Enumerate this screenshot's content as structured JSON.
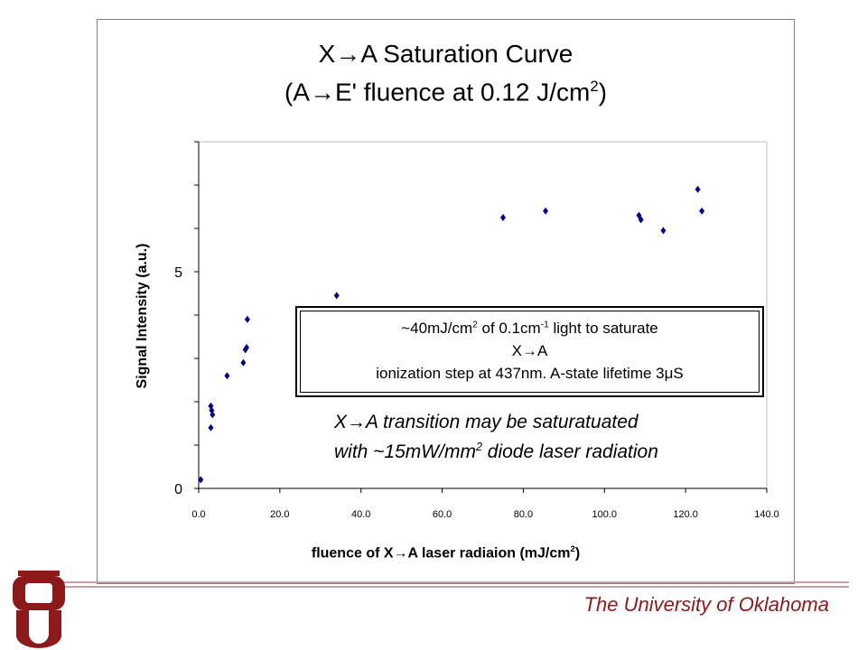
{
  "chart_data": {
    "type": "scatter",
    "title_line1": "X→A Saturation Curve",
    "title_line2_pre": "(A→E' fluence at 0.12 J/cm",
    "title_line2_sup": "2",
    "title_line2_post": ")",
    "xlabel_pre": "fluence of X→A laser radiaion (mJ/cm",
    "xlabel_sup": "2",
    "xlabel_post": ")",
    "ylabel": "Signal Intensity (a.u.)",
    "xlim": [
      0,
      140
    ],
    "ylim": [
      0,
      8
    ],
    "x_ticks": [
      "0.0",
      "20.0",
      "40.0",
      "60.0",
      "80.0",
      "100.0",
      "120.0",
      "140.0"
    ],
    "y_tick_labels": [
      "0",
      "5"
    ],
    "marker_color": "#00008b",
    "points": [
      {
        "x": 0.5,
        "y": 0.2
      },
      {
        "x": 3.0,
        "y": 1.9
      },
      {
        "x": 3.2,
        "y": 1.8
      },
      {
        "x": 3.4,
        "y": 1.7
      },
      {
        "x": 3.0,
        "y": 1.4
      },
      {
        "x": 7.0,
        "y": 2.6
      },
      {
        "x": 11.0,
        "y": 2.9
      },
      {
        "x": 11.5,
        "y": 3.2
      },
      {
        "x": 11.8,
        "y": 3.25
      },
      {
        "x": 12.0,
        "y": 3.9
      },
      {
        "x": 34.0,
        "y": 4.45
      },
      {
        "x": 75.0,
        "y": 6.25
      },
      {
        "x": 85.5,
        "y": 6.4
      },
      {
        "x": 108.5,
        "y": 6.3
      },
      {
        "x": 109.0,
        "y": 6.2
      },
      {
        "x": 114.5,
        "y": 5.95
      },
      {
        "x": 123.0,
        "y": 6.9
      },
      {
        "x": 124.0,
        "y": 6.4
      }
    ]
  },
  "annotation_box": {
    "line1_pre": "~40mJ/cm",
    "line1_sup1": "2",
    "line1_mid": "  of 0.1cm",
    "line1_sup2": "-1",
    "line1_post": " light to saturate",
    "line2": "X→A",
    "line3": "ionization step at 437nm.  A-state lifetime 3μS"
  },
  "italic_note": {
    "line1": "X→A transition may be saturatuated",
    "line2_pre": "with ~15mW/mm",
    "line2_sup": "2",
    "line2_post": " diode laser radiation"
  },
  "footer": {
    "university": "The University of Oklahoma",
    "logo_text": "OU",
    "brand_color": "#8c1a1a"
  }
}
